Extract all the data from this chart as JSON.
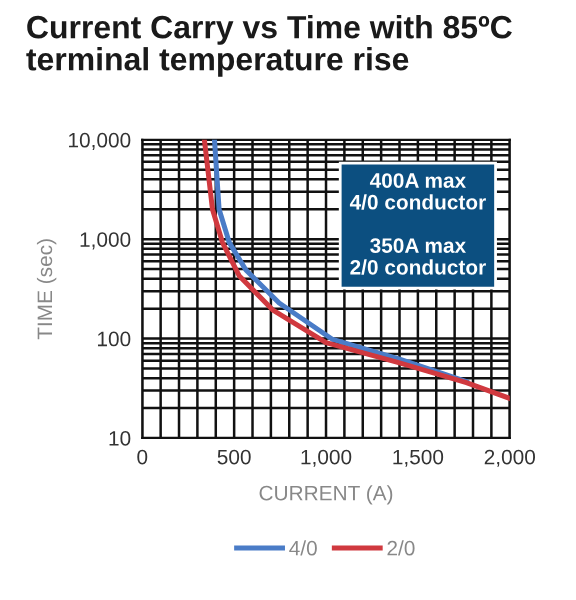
{
  "chart_data": {
    "type": "line",
    "title": "Current Carry vs Time with 85ºC\nterminal temperature rise",
    "xlabel": "CURRENT (A)",
    "ylabel": "TIME (sec)",
    "annotations": [
      "400A max\n4/0 conductor",
      "350A max\n2/0 conductor"
    ],
    "series": [
      {
        "name": "4/0",
        "color": "#4a7cc7",
        "x": [
          393,
          418,
          473,
          564,
          745,
          1036,
          1400,
          1764
        ],
        "values": [
          10000,
          2000,
          930,
          490,
          228,
          98,
          62,
          37
        ]
      },
      {
        "name": "2/0",
        "color": "#d0393f",
        "x": [
          338,
          382,
          436,
          527,
          709,
          1000,
          1400,
          1764,
          2000
        ],
        "values": [
          10000,
          2000,
          930,
          430,
          195,
          91,
          57,
          36,
          25
        ]
      }
    ],
    "log": "y",
    "xlim": [
      0,
      2000
    ],
    "ylim": [
      10,
      10000
    ],
    "xticks": [
      0,
      {
        "value": 100,
        "label": null
      },
      {
        "value": 200,
        "label": null
      },
      {
        "value": 300,
        "label": null
      },
      {
        "value": 400,
        "label": null
      },
      500,
      {
        "value": 600,
        "label": null
      },
      {
        "value": 700,
        "label": null
      },
      {
        "value": 800,
        "label": null
      },
      {
        "value": 900,
        "label": null
      },
      {
        "value": 1000,
        "label": "1,000"
      },
      {
        "value": 1100,
        "label": null
      },
      {
        "value": 1200,
        "label": null
      },
      {
        "value": 1300,
        "label": null
      },
      {
        "value": 1400,
        "label": null
      },
      {
        "value": 1500,
        "label": "1,500"
      },
      {
        "value": 1600,
        "label": null
      },
      {
        "value": 1700,
        "label": null
      },
      {
        "value": 1800,
        "label": null
      },
      {
        "value": 1900,
        "label": null
      },
      {
        "value": 2000,
        "label": "2,000"
      }
    ],
    "yticks": [
      10,
      {
        "value": 20,
        "label": null
      },
      {
        "value": 30,
        "label": null
      },
      {
        "value": 40,
        "label": null
      },
      {
        "value": 50,
        "label": null
      },
      {
        "value": 60,
        "label": null
      },
      {
        "value": 70,
        "label": null
      },
      {
        "value": 80,
        "label": null
      },
      {
        "value": 90,
        "label": null
      },
      100,
      {
        "value": 200,
        "label": null
      },
      {
        "value": 300,
        "label": null
      },
      {
        "value": 400,
        "label": null
      },
      {
        "value": 500,
        "label": null
      },
      {
        "value": 600,
        "label": null
      },
      {
        "value": 700,
        "label": null
      },
      {
        "value": 800,
        "label": null
      },
      {
        "value": 900,
        "label": null
      },
      {
        "value": 1000,
        "label": "1,000"
      },
      {
        "value": 2000,
        "label": null
      },
      {
        "value": 3000,
        "label": null
      },
      {
        "value": 4000,
        "label": null
      },
      {
        "value": 5000,
        "label": null
      },
      {
        "value": 6000,
        "label": null
      },
      {
        "value": 7000,
        "label": null
      },
      {
        "value": 8000,
        "label": null
      },
      {
        "value": 9000,
        "label": null
      },
      {
        "value": 10000,
        "label": "10,000"
      }
    ],
    "grid": true,
    "legend": "bottom",
    "marker": "none",
    "line_style": "solid"
  }
}
